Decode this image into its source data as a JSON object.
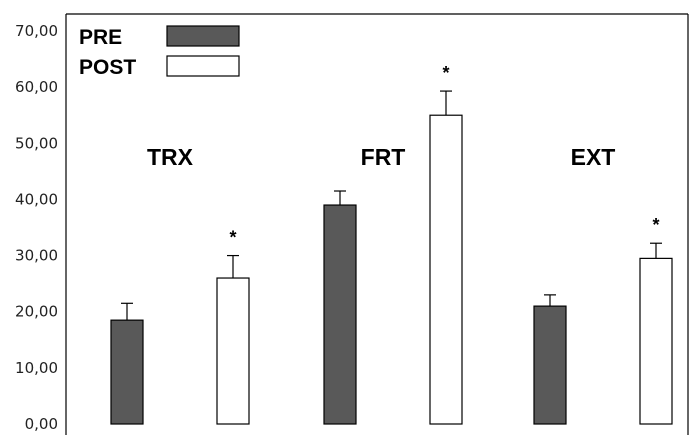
{
  "chart_data": {
    "type": "bar",
    "title": "",
    "xlabel": "",
    "ylabel": "",
    "ylim": [
      0,
      70
    ],
    "yticks": [
      "0,00",
      "10,00",
      "20,00",
      "30,00",
      "40,00",
      "50,00",
      "60,00",
      "70,00"
    ],
    "categories": [
      "TRX",
      "FRT",
      "EXT"
    ],
    "series": [
      {
        "name": "PRE",
        "color": "#595959",
        "values": [
          18.5,
          39.0,
          21.0
        ],
        "errors": [
          3.0,
          2.5,
          2.0
        ]
      },
      {
        "name": "POST",
        "color": "#ffffff",
        "values": [
          26.0,
          55.0,
          29.5
        ],
        "errors": [
          4.0,
          4.3,
          2.7
        ]
      }
    ],
    "annotations": [
      {
        "category": "TRX",
        "series": "POST",
        "text": "*"
      },
      {
        "category": "FRT",
        "series": "POST",
        "text": "*"
      },
      {
        "category": "EXT",
        "series": "POST",
        "text": "*"
      }
    ],
    "legend_position": "top-left",
    "grid": false
  }
}
